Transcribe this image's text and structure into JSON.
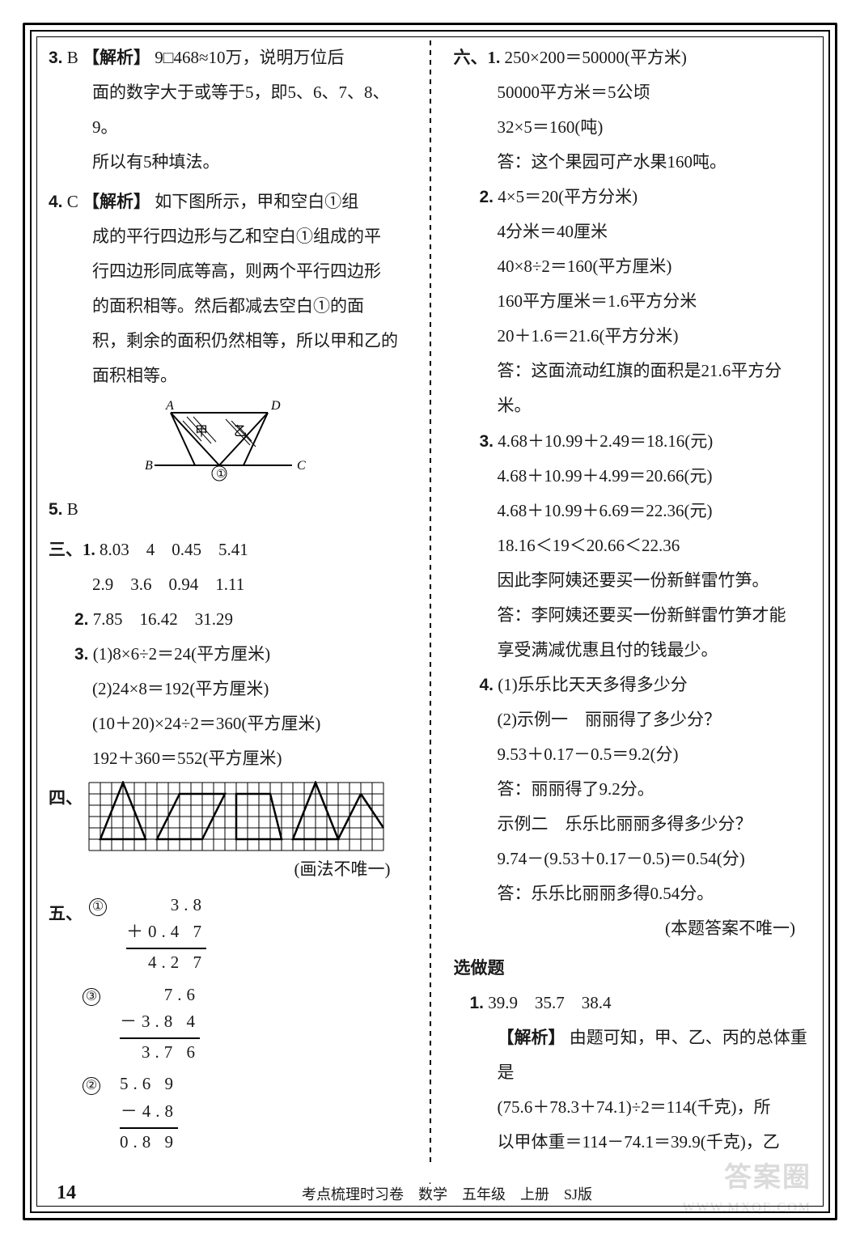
{
  "left": {
    "q3": {
      "num": "3.",
      "ans": "B",
      "tag": "【解析】",
      "line1": "9□468≈10万，说明万位后",
      "line2": "面的数字大于或等于5，即5、6、7、8、9。",
      "line3": "所以有5种填法。"
    },
    "q4": {
      "num": "4.",
      "ans": "C",
      "tag": "【解析】",
      "line1": "如下图所示，甲和空白①组",
      "line2": "成的平行四边形与乙和空白①组成的平",
      "line3": "行四边形同底等高，则两个平行四边形",
      "line4": "的面积相等。然后都减去空白①的面",
      "line5": "积，剩余的面积仍然相等，所以甲和乙的",
      "line6": "面积相等。",
      "labels": {
        "A": "A",
        "B": "B",
        "C": "C",
        "D": "D",
        "jia": "甲",
        "yi": "乙",
        "one": "①"
      }
    },
    "q5": {
      "num": "5.",
      "ans": "B"
    },
    "s3": {
      "label": "三、1.",
      "r1": "8.03　4　0.45　5.41",
      "r2": "2.9　3.6　0.94　1.11",
      "n2": "2.",
      "r3": "7.85　16.42　31.29",
      "n3": "3.",
      "r4": "(1)8×6÷2＝24(平方厘米)",
      "r5": "(2)24×8＝192(平方厘米)",
      "r6": "(10＋20)×24÷2＝360(平方厘米)",
      "r7": "192＋360＝552(平方厘米)"
    },
    "s4": {
      "label": "四、",
      "grid": {
        "cols": 26,
        "rows": 6,
        "cell": 14,
        "shapes": [
          {
            "type": "poly",
            "pts": [
              [
                1,
                5
              ],
              [
                3,
                0
              ],
              [
                5,
                5
              ]
            ]
          },
          {
            "type": "poly",
            "pts": [
              [
                6,
                5
              ],
              [
                8,
                1
              ],
              [
                12,
                1
              ],
              [
                10,
                5
              ]
            ]
          },
          {
            "type": "poly",
            "pts": [
              [
                13,
                5
              ],
              [
                13,
                1
              ],
              [
                16,
                1
              ],
              [
                17,
                5
              ]
            ]
          },
          {
            "type": "poly",
            "pts": [
              [
                18,
                5
              ],
              [
                20,
                0
              ],
              [
                22,
                5
              ]
            ]
          },
          {
            "type": "line",
            "pts": [
              [
                22,
                5
              ],
              [
                24,
                1
              ]
            ]
          },
          {
            "type": "line",
            "pts": [
              [
                24,
                1
              ],
              [
                26,
                4
              ]
            ]
          }
        ]
      },
      "note": "(画法不唯一)"
    },
    "s5": {
      "label": "五、",
      "calc1": {
        "no": "①",
        "a": "3.8 ",
        "b": "＋0.4 7",
        "c": "4.2 7"
      },
      "calc2": {
        "no": "③",
        "a": "7.6 ",
        "b": "－3.8 4",
        "c": "3.7 6"
      },
      "calc3": {
        "no": "②",
        "a": "5.6 9",
        "b": "－4.8 ",
        "c": "0.8 9"
      }
    }
  },
  "right": {
    "s6": {
      "label": "六、1.",
      "l1": "250×200＝50000(平方米)",
      "l2": "50000平方米＝5公顷",
      "l3": "32×5＝160(吨)",
      "l4": "答：这个果园可产水果160吨。",
      "n2": "2.",
      "l5": "4×5＝20(平方分米)",
      "l6": "4分米＝40厘米",
      "l7": "40×8÷2＝160(平方厘米)",
      "l8": "160平方厘米＝1.6平方分米",
      "l9": "20＋1.6＝21.6(平方分米)",
      "l10": "答：这面流动红旗的面积是21.6平方分米。",
      "n3": "3.",
      "l11": "4.68＋10.99＋2.49＝18.16(元)",
      "l12": "4.68＋10.99＋4.99＝20.66(元)",
      "l13": "4.68＋10.99＋6.69＝22.36(元)",
      "l14": "18.16＜19＜20.66＜22.36",
      "l15": "因此李阿姨还要买一份新鲜雷竹笋。",
      "l16": "答：李阿姨还要买一份新鲜雷竹笋才能",
      "l17": "享受满减优惠且付的钱最少。",
      "n4": "4.",
      "l18": "(1)乐乐比天天多得多少分",
      "l19": "(2)示例一　丽丽得了多少分？",
      "l20": "9.53＋0.17－0.5＝9.2(分)",
      "l21": "答：丽丽得了9.2分。",
      "l22": "示例二　乐乐比丽丽多得多少分？",
      "l23": "9.74－(9.53＋0.17－0.5)＝0.54(分)",
      "l24": "答：乐乐比丽丽多得0.54分。",
      "l25": "(本题答案不唯一)"
    },
    "bonus": {
      "title": "选做题",
      "n1": "1.",
      "l1": "39.9　35.7　38.4",
      "tag": "【解析】",
      "l2": "由题可知，甲、乙、丙的总体重是",
      "l3": "(75.6＋78.3＋74.1)÷2＝114(千克)，所",
      "l4": "以甲体重＝114－74.1＝39.9(千克)，乙"
    }
  },
  "footer": {
    "page": "14",
    "text": "考点梳理时习卷　数学　五年级　上册　SJ版"
  },
  "watermark": {
    "main": "答案圈",
    "sub": "WWW.MXQE.COM"
  },
  "dot": "."
}
